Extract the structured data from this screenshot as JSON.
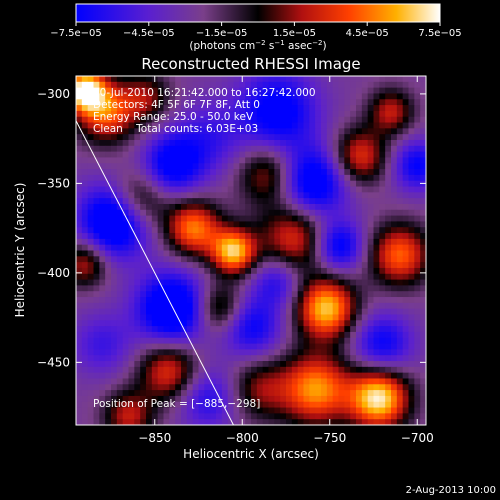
{
  "chart_data": {
    "type": "heatmap",
    "title": "Reconstructed RHESSI Image",
    "xlabel": "Heliocentric X (arcsec)",
    "ylabel": "Heliocentric Y (arcsec)",
    "xlim": [
      -895,
      -695
    ],
    "ylim": [
      -485,
      -290
    ],
    "x_ticks": [
      -850,
      -800,
      -750,
      -700
    ],
    "y_ticks": [
      -300,
      -350,
      -400,
      -450
    ],
    "x_tick_labels": [
      "−850",
      "−800",
      "−750",
      "−700"
    ],
    "y_tick_labels": [
      "−300",
      "−350",
      "−400",
      "−450"
    ],
    "colorbar": {
      "range": [
        -7.5e-05,
        7.5e-05
      ],
      "ticks": [
        -7.5e-05,
        -4.5e-05,
        -1.5e-05,
        1.5e-05,
        4.5e-05,
        7.5e-05
      ],
      "tick_labels": [
        "−7.5e−05",
        "−4.5e−05",
        "−1.5e−05",
        "1.5e−05",
        "4.5e−05",
        "7.5e−05"
      ],
      "units_pre": "(photons cm",
      "units_exp1": "−2",
      "units_mid": " s",
      "units_exp2": "−1",
      "units_mid2": " asec",
      "units_exp3": "−2",
      "units_post": ")"
    },
    "info": {
      "line1": "20-Jul-2010 16:21:42.000 to 16:27:42.000",
      "line2": "Detectors: 4F 5F 6F 7F 8F, Att 0",
      "line3": "Energy Range: 25.0 - 50.0 keV",
      "line4": "Clean    Total counts: 6.03E+03"
    },
    "peak_label": "Position of Peak = [−885,−298]",
    "peak_position": [
      -885,
      -298
    ],
    "date_stamp": "2-Aug-2013 10:00",
    "limb_line": [
      [
        -895,
        -315
      ],
      [
        -805,
        -485
      ]
    ],
    "blobs": [
      [
        -890,
        -298,
        1.0,
        8
      ],
      [
        -878,
        -310,
        0.7,
        12
      ],
      [
        -855,
        -302,
        0.4,
        10
      ],
      [
        -780,
        -310,
        -0.6,
        16
      ],
      [
        -820,
        -325,
        -0.3,
        14
      ],
      [
        -860,
        -360,
        0.6,
        12
      ],
      [
        -828,
        -375,
        0.75,
        11
      ],
      [
        -805,
        -388,
        0.9,
        9
      ],
      [
        -785,
        -345,
        0.5,
        12
      ],
      [
        -760,
        -350,
        -0.7,
        14
      ],
      [
        -770,
        -380,
        0.6,
        14
      ],
      [
        -752,
        -420,
        0.9,
        12
      ],
      [
        -758,
        -465,
        0.8,
        14
      ],
      [
        -722,
        -470,
        1.0,
        12
      ],
      [
        -710,
        -390,
        0.7,
        12
      ],
      [
        -733,
        -335,
        0.6,
        11
      ],
      [
        -715,
        -310,
        0.5,
        9
      ],
      [
        -872,
        -370,
        -0.9,
        14
      ],
      [
        -840,
        -420,
        -0.8,
        14
      ],
      [
        -813,
        -420,
        0.5,
        10
      ],
      [
        -795,
        -430,
        -0.5,
        12
      ],
      [
        -842,
        -455,
        0.6,
        12
      ],
      [
        -820,
        -470,
        -0.4,
        12
      ],
      [
        -880,
        -440,
        -0.3,
        12
      ],
      [
        -890,
        -395,
        0.5,
        9
      ],
      [
        -745,
        -385,
        -0.6,
        10
      ],
      [
        -720,
        -440,
        -0.5,
        12
      ],
      [
        -790,
        -465,
        0.4,
        12
      ],
      [
        -700,
        -340,
        -0.5,
        10
      ],
      [
        -840,
        -340,
        -0.6,
        12
      ],
      [
        -780,
        -405,
        -0.4,
        10
      ],
      [
        -865,
        -480,
        0.5,
        10
      ]
    ]
  }
}
